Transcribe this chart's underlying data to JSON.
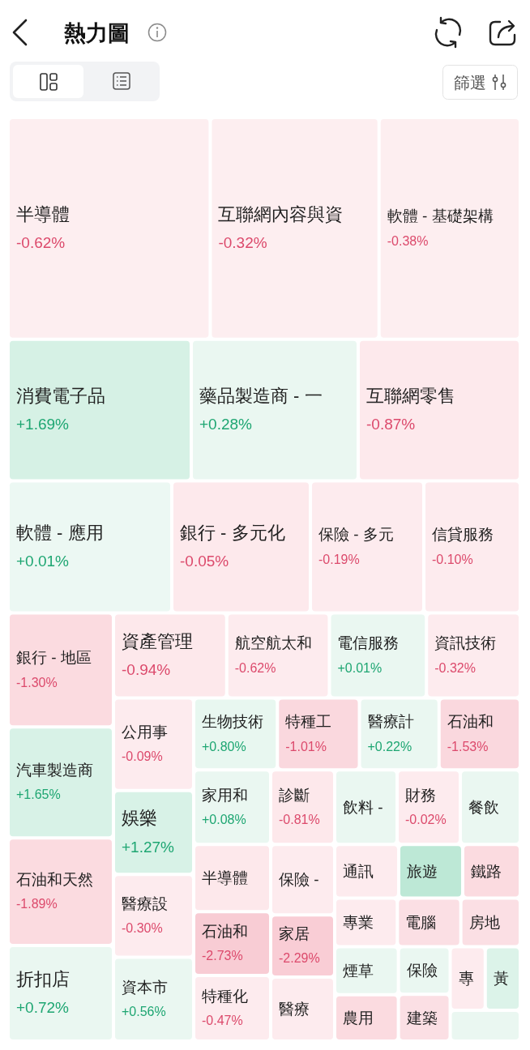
{
  "chart_data": {
    "type": "other",
    "title": "熱力圖",
    "categories": [
      "半導體",
      "互聯網內容與資",
      "軟體 - 基礎架構",
      "消費電子品",
      "藥品製造商 - 一",
      "互聯網零售",
      "軟體 - 應用",
      "銀行 - 多元化",
      "保險 - 多元",
      "信貸服務",
      "銀行 - 地區",
      "汽車製造商",
      "石油和天然",
      "折扣店",
      "資產管理",
      "航空航太和",
      "電信服務",
      "資訊技術",
      "公用事",
      "娛樂",
      "醫療設",
      "資本市",
      "生物技術",
      "特種工",
      "醫療計",
      "石油和",
      "家用和",
      "診斷",
      "飲料 -",
      "財務",
      "餐飲",
      "半導體",
      "石油和",
      "特種化",
      "保險 -",
      "家居",
      "醫療",
      "通訊",
      "旅遊",
      "鐵路",
      "專業",
      "電腦",
      "房地",
      "煙草",
      "農用",
      "保險",
      "建築",
      "專",
      "黃",
      null
    ],
    "values": [
      -0.62,
      -0.32,
      -0.38,
      1.69,
      0.28,
      -0.87,
      0.01,
      -0.05,
      -0.19,
      -0.1,
      -1.3,
      1.65,
      -1.89,
      0.72,
      -0.94,
      -0.62,
      0.01,
      -0.32,
      -0.09,
      1.27,
      -0.3,
      0.56,
      0.8,
      -1.01,
      0.22,
      -1.53,
      0.08,
      -0.81,
      null,
      -0.02,
      null,
      null,
      -2.73,
      -0.47,
      null,
      -2.29,
      null,
      null,
      null,
      null,
      null,
      null,
      null,
      null,
      null,
      null,
      null,
      null,
      null,
      null
    ],
    "value_labels": [
      "-0.62%",
      "-0.32%",
      "-0.38%",
      "+1.69%",
      "+0.28%",
      "-0.87%",
      "+0.01%",
      "-0.05%",
      "-0.19%",
      "-0.10%",
      "-1.30%",
      "+1.65%",
      "-1.89%",
      "+0.72%",
      "-0.94%",
      "-0.62%",
      "+0.01%",
      "-0.32%",
      "-0.09%",
      "+1.27%",
      "-0.30%",
      "+0.56%",
      "+0.80%",
      "-1.01%",
      "+0.22%",
      "-1.53%",
      "+0.08%",
      "-0.81%",
      null,
      "-0.02%",
      null,
      null,
      "-2.73%",
      "-0.47%",
      null,
      "-2.29%",
      null,
      null,
      null,
      null,
      null,
      null,
      null,
      null,
      null,
      null,
      null,
      null,
      null,
      null
    ],
    "colors": [
      "#fdeef0",
      "#fdeef0",
      "#fdeef0",
      "#d6f1e5",
      "#eaf7f1",
      "#fde9ec",
      "#ecf8f3",
      "#fde9ec",
      "#fdebee",
      "#fdebee",
      "#fbdbe0",
      "#d8f2e7",
      "#fbdbe0",
      "#eaf7f1",
      "#fde8eb",
      "#fdebee",
      "#eaf7f1",
      "#fdebee",
      "#fdebee",
      "#d8f2e7",
      "#fdebee",
      "#eaf7f1",
      "#e8f7f0",
      "#fad8de",
      "#eaf7f1",
      "#fad8de",
      "#eaf7f1",
      "#fde8eb",
      "#eaf7f1",
      "#fdebee",
      "#eaf7f1",
      "#fde8eb",
      "#f8ccd4",
      "#fdebee",
      "#fdebee",
      "#f9cdd5",
      "#fdebee",
      "#fdebee",
      "#bde8d6",
      "#fbdbe0",
      "#fdebee",
      "#fbdfe4",
      "#fbdfe4",
      "#eaf7f1",
      "#fbdbe0",
      "#eaf7f1",
      "#fbdfe4",
      "#fdebee",
      "#dcf3e9",
      "#eaf7f1"
    ],
    "annotations": [
      "篩選"
    ]
  }
}
